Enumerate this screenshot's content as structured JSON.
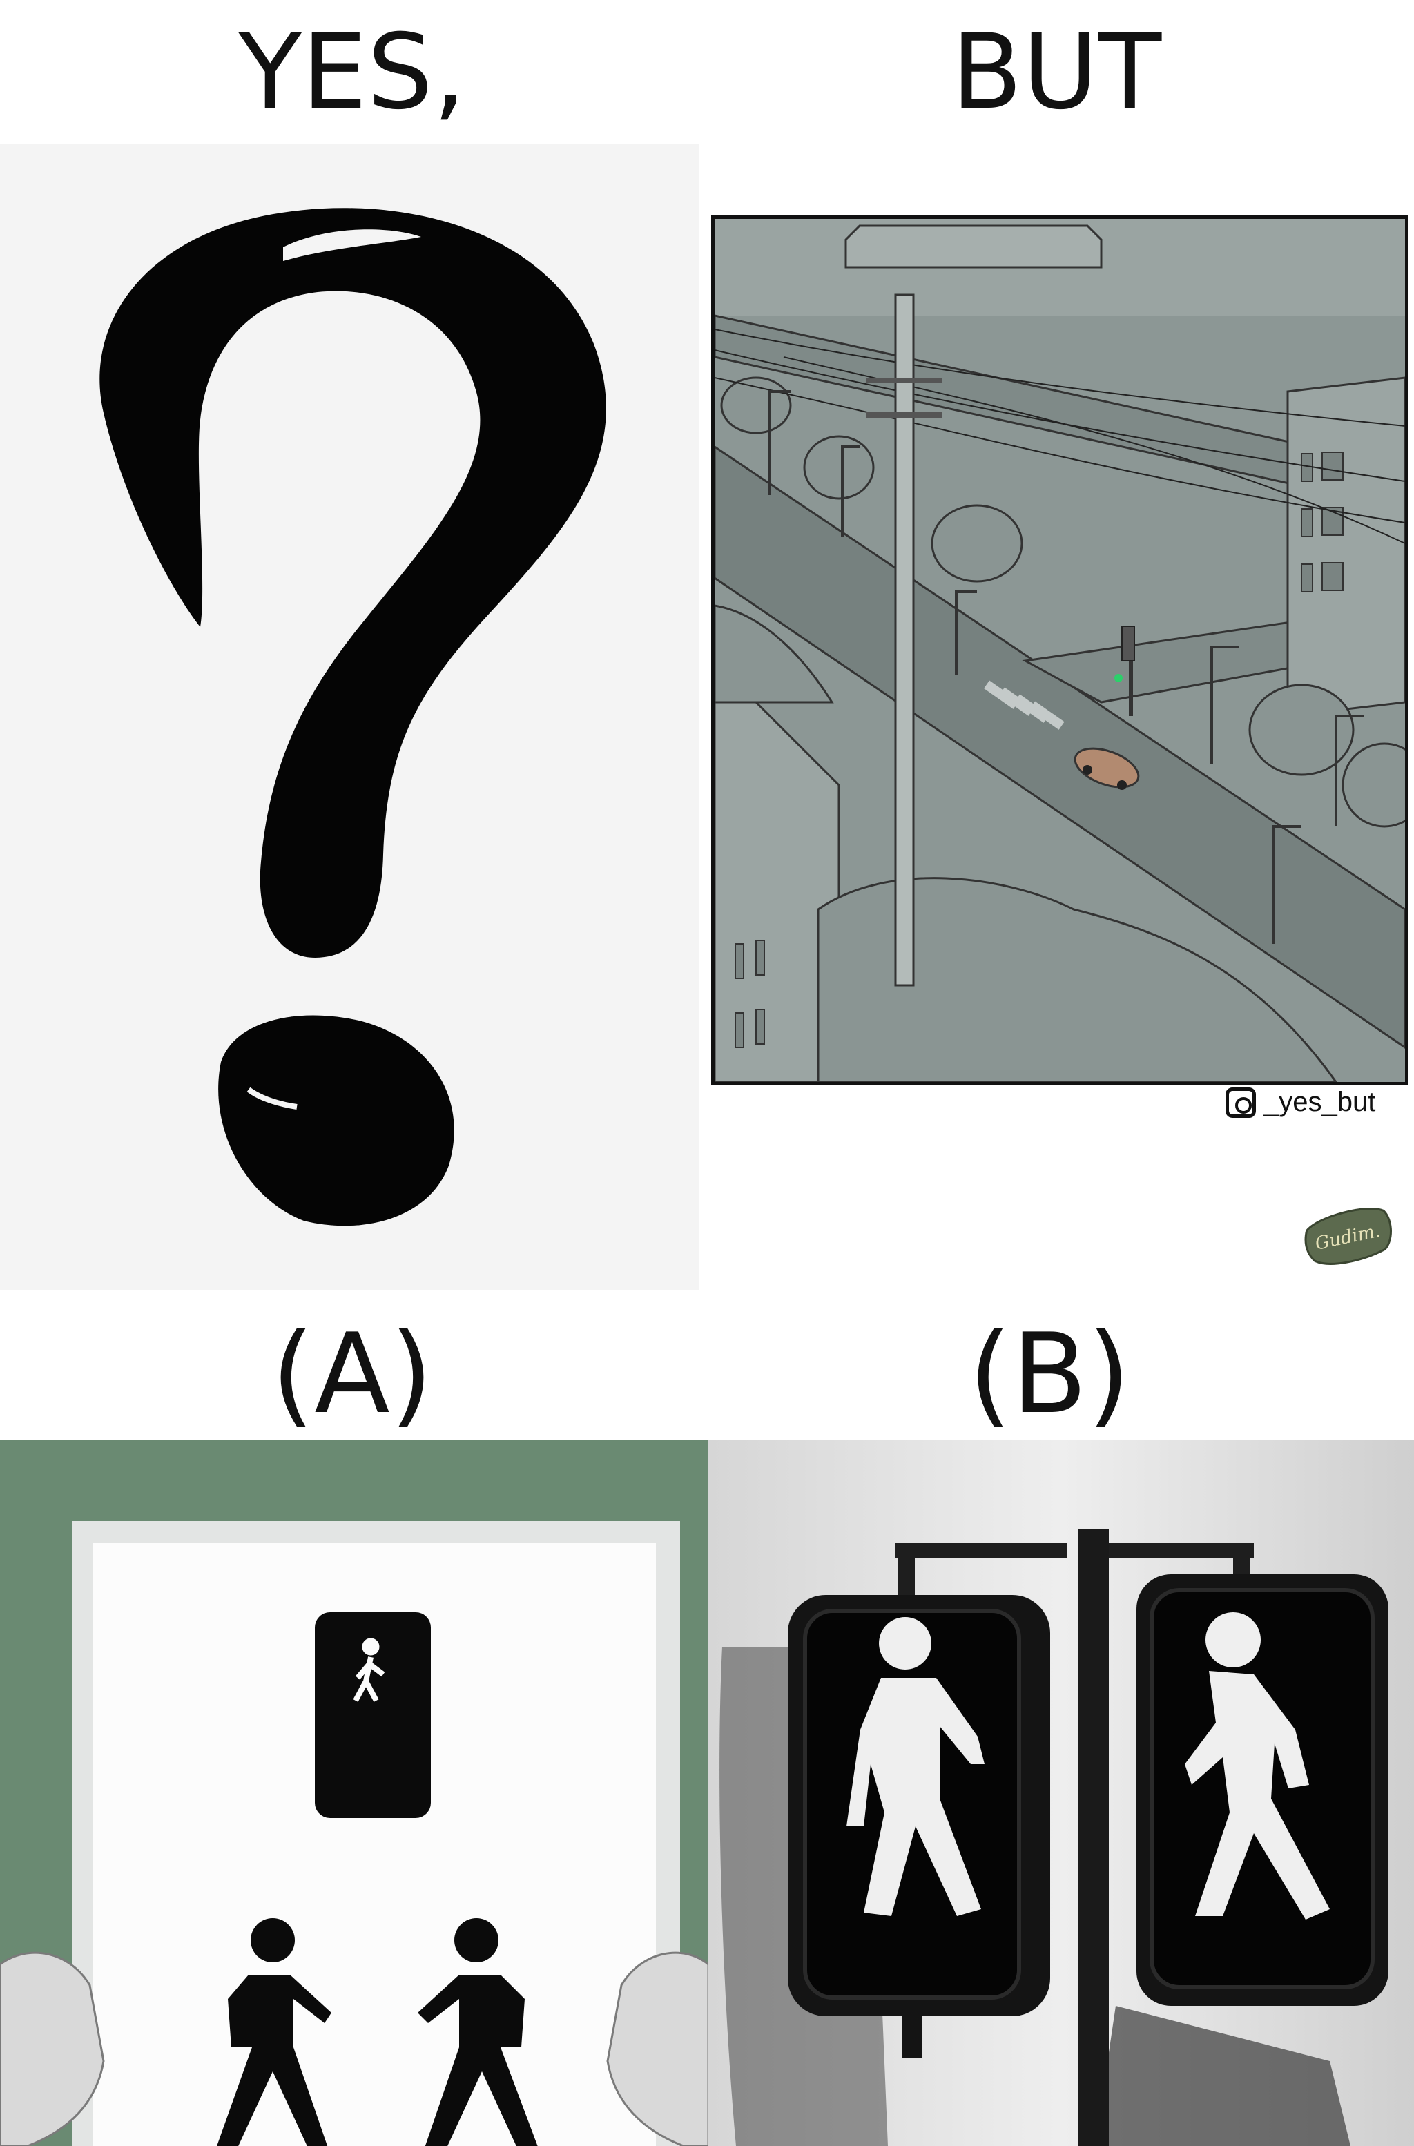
{
  "captions": {
    "top_left": "YES,",
    "top_right": "BUT",
    "option_a": "(A)",
    "option_b": "(B)"
  },
  "watermark": {
    "handle": "_yes_but",
    "icon": "instagram-icon",
    "signature": "Gudim."
  },
  "colors": {
    "street_gray": "#8c9795",
    "sign_green": "#6a8a72",
    "signal_green": "#2bd06a"
  }
}
